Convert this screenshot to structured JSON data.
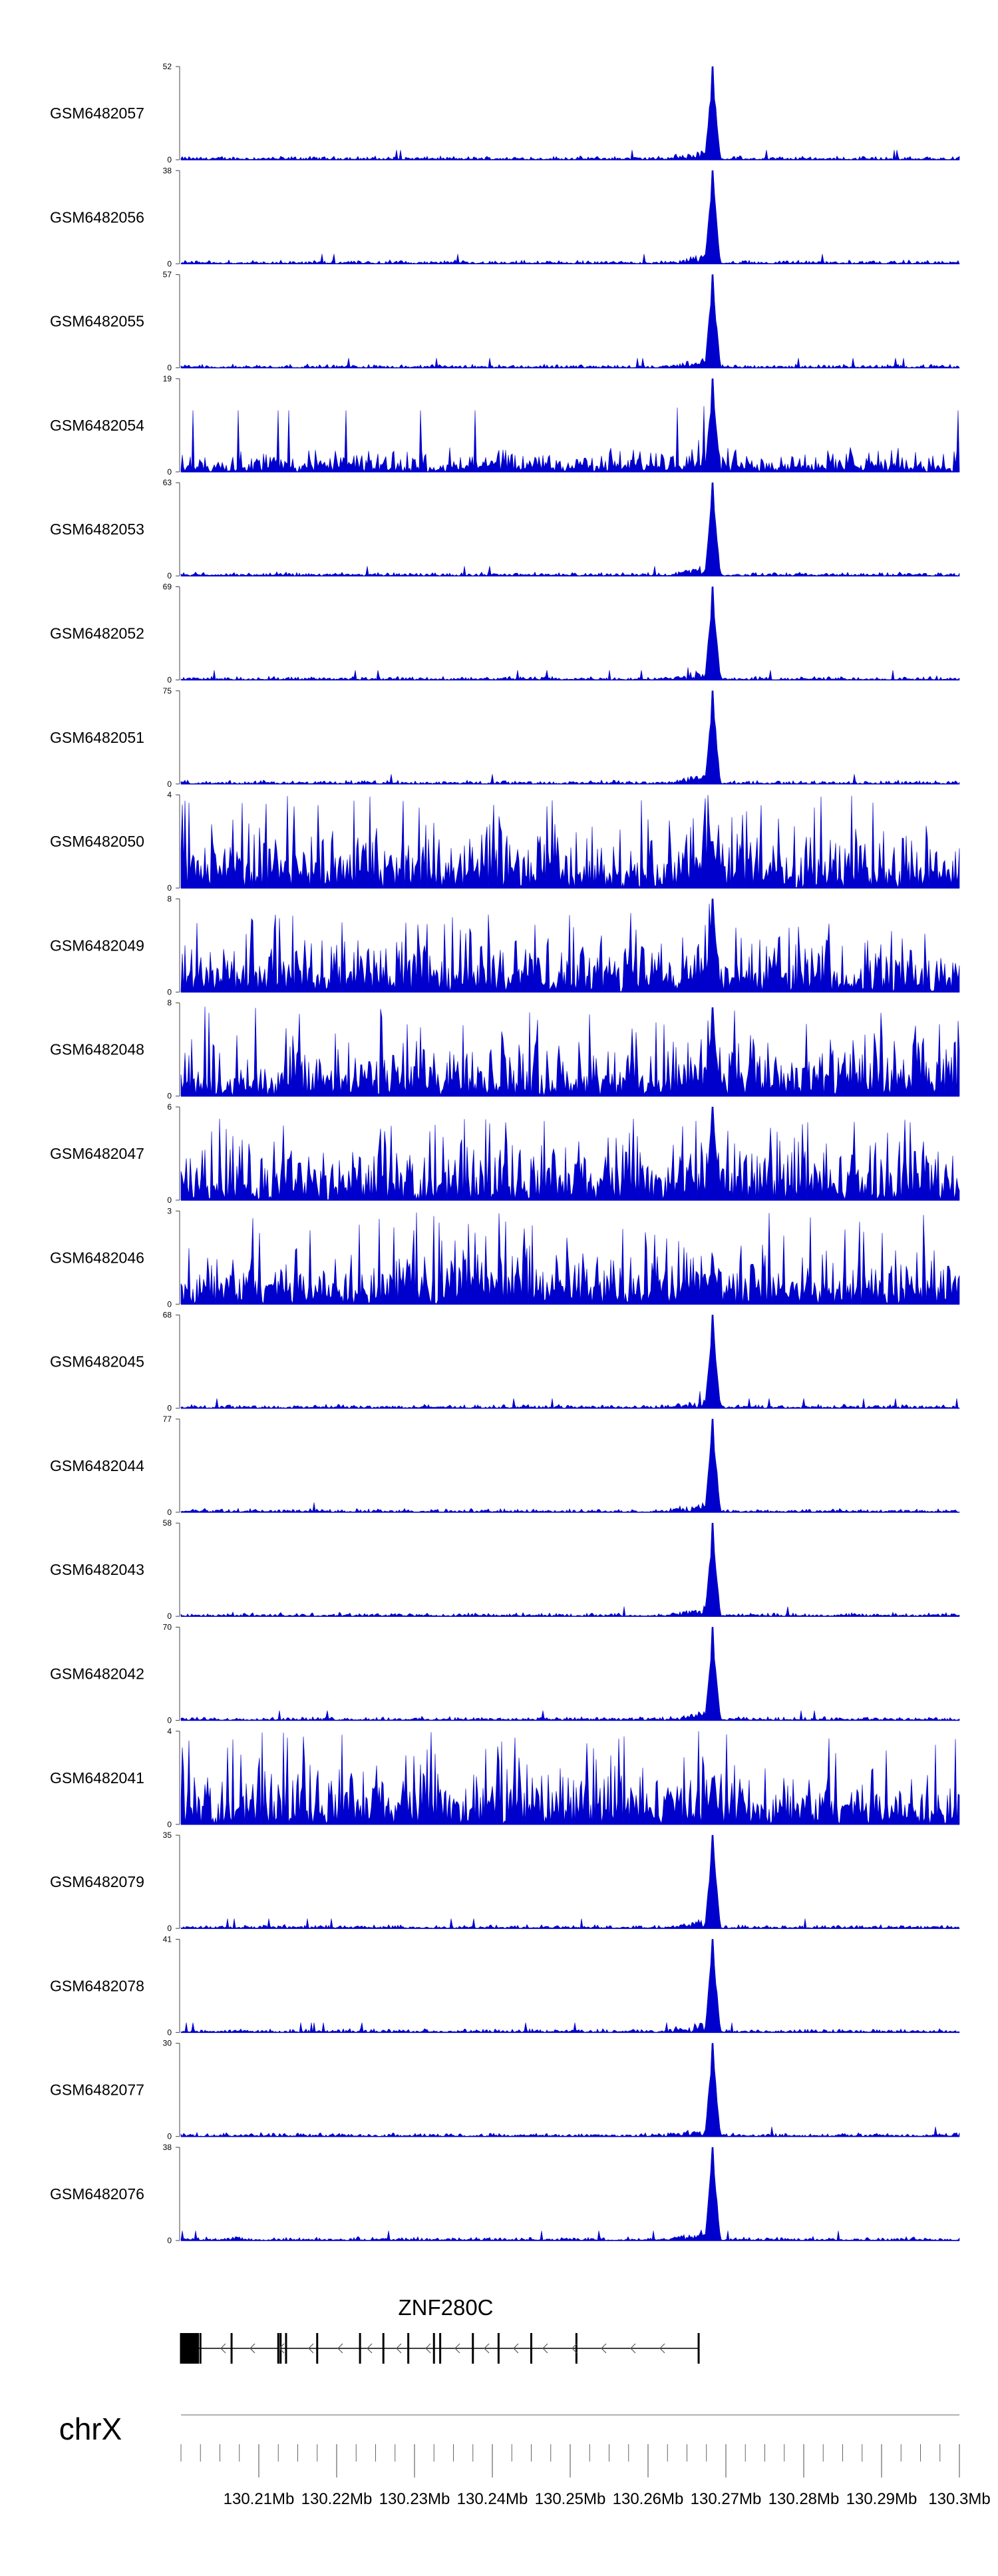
{
  "chart_data": {
    "type": "area",
    "chromosome": "chrX",
    "xlim": [
      130.2,
      130.3
    ],
    "x_ticks": [
      130.21,
      130.22,
      130.23,
      130.24,
      130.25,
      130.26,
      130.27,
      130.28,
      130.29,
      130.3
    ],
    "x_tick_labels": [
      "130.21Mb",
      "130.22Mb",
      "130.23Mb",
      "130.24Mb",
      "130.25Mb",
      "130.26Mb",
      "130.27Mb",
      "130.28Mb",
      "130.29Mb",
      "130.3Mb"
    ],
    "color": "#0000cc",
    "peak_position": 130.2683,
    "tracks": [
      {
        "name": "GSM6482057",
        "ymax": 52,
        "peak": 1.0,
        "noise": "low"
      },
      {
        "name": "GSM6482056",
        "ymax": 38,
        "peak": 1.0,
        "noise": "low"
      },
      {
        "name": "GSM6482055",
        "ymax": 57,
        "peak": 1.0,
        "noise": "low"
      },
      {
        "name": "GSM6482054",
        "ymax": 19,
        "peak": 1.0,
        "noise": "medium"
      },
      {
        "name": "GSM6482053",
        "ymax": 63,
        "peak": 1.0,
        "noise": "low"
      },
      {
        "name": "GSM6482052",
        "ymax": 69,
        "peak": 1.0,
        "noise": "low"
      },
      {
        "name": "GSM6482051",
        "ymax": 75,
        "peak": 1.0,
        "noise": "low"
      },
      {
        "name": "GSM6482050",
        "ymax": 4,
        "peak": 0.5,
        "noise": "high"
      },
      {
        "name": "GSM6482049",
        "ymax": 8,
        "peak": 1.0,
        "noise": "high"
      },
      {
        "name": "GSM6482048",
        "ymax": 8,
        "peak": 0.95,
        "noise": "high"
      },
      {
        "name": "GSM6482047",
        "ymax": 6,
        "peak": 1.0,
        "noise": "high"
      },
      {
        "name": "GSM6482046",
        "ymax": 3,
        "peak": 0.5,
        "noise": "high"
      },
      {
        "name": "GSM6482045",
        "ymax": 68,
        "peak": 1.0,
        "noise": "low"
      },
      {
        "name": "GSM6482044",
        "ymax": 77,
        "peak": 1.0,
        "noise": "low"
      },
      {
        "name": "GSM6482043",
        "ymax": 58,
        "peak": 1.0,
        "noise": "low"
      },
      {
        "name": "GSM6482042",
        "ymax": 70,
        "peak": 1.0,
        "noise": "low"
      },
      {
        "name": "GSM6482041",
        "ymax": 4,
        "peak": 0.5,
        "noise": "high"
      },
      {
        "name": "GSM6482079",
        "ymax": 35,
        "peak": 1.0,
        "noise": "low"
      },
      {
        "name": "GSM6482078",
        "ymax": 41,
        "peak": 1.0,
        "noise": "low"
      },
      {
        "name": "GSM6482077",
        "ymax": 30,
        "peak": 1.0,
        "noise": "low"
      },
      {
        "name": "GSM6482076",
        "ymax": 38,
        "peak": 1.0,
        "noise": "low"
      }
    ],
    "gene": {
      "name": "ZNF280C",
      "strand": "-",
      "start": 130.2,
      "end": 130.2665,
      "exons": [
        130.2,
        130.2025,
        130.2065,
        130.2125,
        130.2128,
        130.2135,
        130.2175,
        130.223,
        130.226,
        130.2292,
        130.2325,
        130.2333,
        130.2375,
        130.2408,
        130.245,
        130.2508,
        130.2665
      ]
    }
  }
}
